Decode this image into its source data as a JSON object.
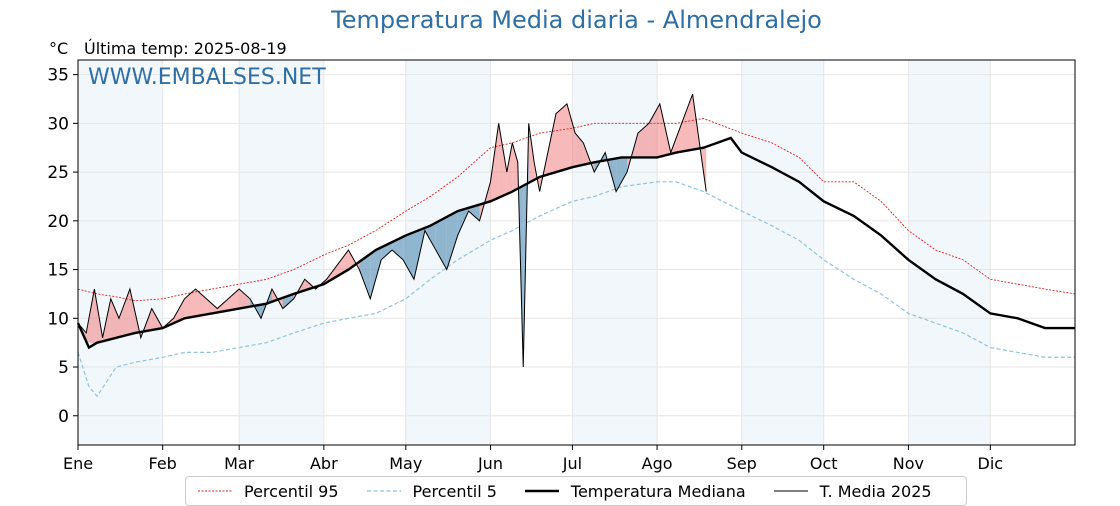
{
  "header": {
    "title": "Temperatura Media diaria - Almendralejo",
    "unit": "°C",
    "last_temp": "Última temp: 2025-08-19"
  },
  "watermark": "WWW.EMBALSES.NET",
  "chart_data": {
    "type": "line",
    "title": "Temperatura Media diaria - Almendralejo",
    "xlabel": "",
    "ylabel": "°C",
    "ylim": [
      -3,
      36.5
    ],
    "yticks": [
      0,
      5,
      10,
      15,
      20,
      25,
      30,
      35
    ],
    "xlim": [
      1,
      366
    ],
    "month_labels": [
      "Ene",
      "Feb",
      "Mar",
      "Abr",
      "May",
      "Jun",
      "Jul",
      "Ago",
      "Sep",
      "Oct",
      "Nov",
      "Dic"
    ],
    "month_starts": [
      1,
      32,
      60,
      91,
      121,
      152,
      182,
      213,
      244,
      274,
      305,
      335
    ],
    "grid": true,
    "legend_position": "bottom",
    "colors": {
      "p95": "#e02020",
      "p5": "#8ec5d8",
      "median": "#000000",
      "current": "#000000",
      "above": "#f08080",
      "below": "#6f9fc0",
      "band": "#f2f7fc"
    },
    "series": [
      {
        "key": "p95",
        "name": "Percentil 95",
        "x": [
          1,
          8,
          15,
          22,
          32,
          40,
          50,
          60,
          70,
          80,
          91,
          100,
          110,
          121,
          130,
          140,
          152,
          160,
          170,
          182,
          190,
          200,
          213,
          220,
          230,
          244,
          255,
          265,
          274,
          285,
          295,
          305,
          315,
          325,
          335,
          345,
          355,
          366
        ],
        "values": [
          13,
          12.5,
          12.2,
          11.8,
          12,
          12.5,
          13,
          13.5,
          14,
          15,
          16.5,
          17.5,
          19,
          21,
          22.5,
          24.5,
          27.5,
          28,
          29,
          29.5,
          30,
          30,
          30,
          30,
          30.5,
          29,
          28,
          26.5,
          24,
          24,
          22,
          19,
          17,
          16,
          14,
          13.5,
          13,
          12.5
        ]
      },
      {
        "key": "p5",
        "name": "Percentil 5",
        "x": [
          1,
          5,
          8,
          15,
          22,
          32,
          40,
          50,
          60,
          70,
          80,
          91,
          100,
          110,
          121,
          130,
          140,
          152,
          160,
          170,
          182,
          190,
          200,
          213,
          220,
          230,
          244,
          255,
          265,
          274,
          285,
          295,
          305,
          315,
          325,
          335,
          345,
          355,
          366
        ],
        "values": [
          6.5,
          3,
          2,
          5,
          5.5,
          6,
          6.5,
          6.5,
          7,
          7.5,
          8.5,
          9.5,
          10,
          10.5,
          12,
          14,
          16,
          18,
          19,
          20.5,
          22,
          22.5,
          23.5,
          24,
          24,
          23,
          21,
          19.5,
          18,
          16,
          14,
          12.5,
          10.5,
          9.5,
          8.5,
          7,
          6.5,
          6,
          6
        ]
      },
      {
        "key": "median",
        "name": "Temperatura Mediana",
        "x": [
          1,
          5,
          8,
          15,
          22,
          32,
          40,
          50,
          60,
          70,
          80,
          91,
          100,
          110,
          121,
          130,
          140,
          152,
          160,
          170,
          182,
          190,
          200,
          213,
          220,
          230,
          240,
          244,
          255,
          265,
          274,
          285,
          295,
          305,
          315,
          325,
          335,
          345,
          355,
          366
        ],
        "values": [
          9.5,
          7,
          7.5,
          8,
          8.5,
          9,
          10,
          10.5,
          11,
          11.5,
          12.5,
          13.5,
          15,
          17,
          18.5,
          19.5,
          21,
          22,
          23,
          24.5,
          25.5,
          26,
          26.5,
          26.5,
          27,
          27.5,
          28.5,
          27,
          25.5,
          24,
          22,
          20.5,
          18.5,
          16,
          14,
          12.5,
          10.5,
          10,
          9,
          9
        ]
      },
      {
        "key": "current",
        "name": "T. Media 2025",
        "x": [
          1,
          4,
          7,
          10,
          13,
          16,
          20,
          24,
          28,
          32,
          36,
          40,
          44,
          48,
          52,
          56,
          60,
          64,
          68,
          72,
          76,
          80,
          84,
          88,
          92,
          96,
          100,
          104,
          108,
          112,
          116,
          120,
          124,
          128,
          132,
          136,
          140,
          144,
          148,
          152,
          155,
          158,
          160,
          162,
          164,
          166,
          168,
          170,
          173,
          176,
          180,
          183,
          186,
          190,
          194,
          198,
          202,
          206,
          210,
          214,
          218,
          222,
          226,
          231
        ],
        "values": [
          9.5,
          8.5,
          13,
          8,
          12,
          10,
          13,
          8,
          11,
          9,
          10,
          12,
          13,
          12,
          11,
          12,
          13,
          12,
          10,
          13,
          11,
          12,
          14,
          13,
          14,
          15.5,
          17,
          15,
          12,
          16,
          17,
          16,
          14,
          19,
          17,
          15,
          18.5,
          21,
          20,
          24,
          30,
          25,
          28,
          26,
          5,
          30,
          26,
          23,
          27,
          31,
          32,
          29,
          28,
          25,
          27,
          23,
          25,
          29,
          30,
          32,
          27,
          30,
          33,
          23
        ]
      }
    ]
  },
  "legend": [
    {
      "key": "p95",
      "label": "Percentil 95"
    },
    {
      "key": "p5",
      "label": "Percentil 5"
    },
    {
      "key": "median",
      "label": "Temperatura Mediana"
    },
    {
      "key": "current",
      "label": "T. Media 2025"
    }
  ]
}
